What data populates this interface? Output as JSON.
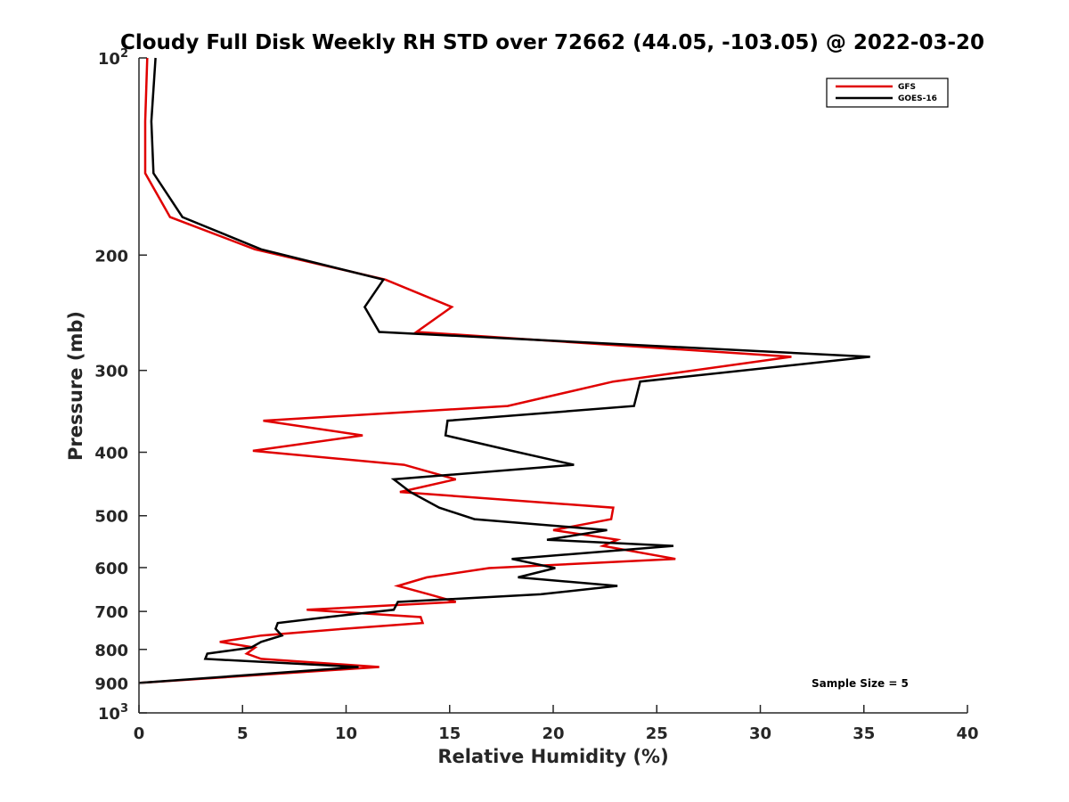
{
  "chart_data": {
    "type": "line",
    "title": "Cloudy Full Disk Weekly RH STD over 72662 (44.05, -103.05) @ 2022-03-20",
    "xlabel": "Relative Humidity (%)",
    "ylabel": "Pressure (mb)",
    "xlim": [
      0,
      40
    ],
    "ylim": [
      100,
      1000
    ],
    "y_scale": "log",
    "y_reversed": true,
    "grid": false,
    "legend_position": "top-right",
    "x_ticks": [
      {
        "value": 0,
        "label": "0"
      },
      {
        "value": 5,
        "label": "5"
      },
      {
        "value": 10,
        "label": "10"
      },
      {
        "value": 15,
        "label": "15"
      },
      {
        "value": 20,
        "label": "20"
      },
      {
        "value": 25,
        "label": "25"
      },
      {
        "value": 30,
        "label": "30"
      },
      {
        "value": 35,
        "label": "35"
      },
      {
        "value": 40,
        "label": "40"
      }
    ],
    "y_ticks": [
      {
        "value": 100,
        "base": "10",
        "exp": "2"
      },
      {
        "value": 200,
        "label": "200"
      },
      {
        "value": 300,
        "label": "300"
      },
      {
        "value": 400,
        "label": "400"
      },
      {
        "value": 500,
        "label": "500"
      },
      {
        "value": 600,
        "label": "600"
      },
      {
        "value": 700,
        "label": "700"
      },
      {
        "value": 800,
        "label": "800"
      },
      {
        "value": 900,
        "label": "900"
      },
      {
        "value": 1000,
        "base": "10",
        "exp": "3"
      }
    ],
    "series": [
      {
        "name": "GFS",
        "color": "#e00000",
        "points": [
          [
            0.4,
            100
          ],
          [
            0.3,
            125
          ],
          [
            0.3,
            150
          ],
          [
            1.5,
            175
          ],
          [
            5.6,
            196
          ],
          [
            11.9,
            218
          ],
          [
            15.1,
            240
          ],
          [
            13.4,
            262
          ],
          [
            31.5,
            286
          ],
          [
            22.9,
            312
          ],
          [
            17.8,
            340
          ],
          [
            6.0,
            358
          ],
          [
            10.8,
            377
          ],
          [
            5.5,
            398
          ],
          [
            12.8,
            418
          ],
          [
            15.3,
            440
          ],
          [
            12.6,
            460
          ],
          [
            22.9,
            486
          ],
          [
            22.8,
            506
          ],
          [
            20.0,
            526
          ],
          [
            23.1,
            544
          ],
          [
            22.4,
            556
          ],
          [
            25.9,
            582
          ],
          [
            16.9,
            601
          ],
          [
            13.9,
            621
          ],
          [
            12.5,
            640
          ],
          [
            14.0,
            659
          ],
          [
            15.3,
            677
          ],
          [
            8.1,
            696
          ],
          [
            13.6,
            714
          ],
          [
            13.7,
            729
          ],
          [
            9.9,
            744
          ],
          [
            5.9,
            762
          ],
          [
            3.9,
            779
          ],
          [
            5.6,
            795
          ],
          [
            5.2,
            812
          ],
          [
            5.9,
            827
          ],
          [
            11.6,
            851
          ],
          [
            0.0,
            900
          ]
        ]
      },
      {
        "name": "GOES-16",
        "color": "#000000",
        "points": [
          [
            0.8,
            100
          ],
          [
            0.6,
            125
          ],
          [
            0.7,
            150
          ],
          [
            2.1,
            175
          ],
          [
            5.9,
            196
          ],
          [
            11.8,
            218
          ],
          [
            10.9,
            240
          ],
          [
            11.6,
            262
          ],
          [
            35.3,
            286
          ],
          [
            24.2,
            312
          ],
          [
            23.9,
            340
          ],
          [
            14.9,
            358
          ],
          [
            14.8,
            377
          ],
          [
            18.0,
            398
          ],
          [
            21.0,
            418
          ],
          [
            12.3,
            440
          ],
          [
            13.1,
            460
          ],
          [
            14.5,
            486
          ],
          [
            16.2,
            506
          ],
          [
            22.6,
            526
          ],
          [
            19.7,
            544
          ],
          [
            25.8,
            556
          ],
          [
            18.0,
            582
          ],
          [
            20.1,
            601
          ],
          [
            18.3,
            621
          ],
          [
            23.1,
            640
          ],
          [
            19.4,
            659
          ],
          [
            12.5,
            677
          ],
          [
            12.3,
            696
          ],
          [
            9.1,
            714
          ],
          [
            6.7,
            729
          ],
          [
            6.6,
            744
          ],
          [
            6.9,
            762
          ],
          [
            5.9,
            779
          ],
          [
            5.4,
            795
          ],
          [
            3.3,
            812
          ],
          [
            3.2,
            827
          ],
          [
            10.6,
            851
          ],
          [
            0.0,
            900
          ]
        ]
      }
    ],
    "annotation": "Sample Size = 5"
  }
}
